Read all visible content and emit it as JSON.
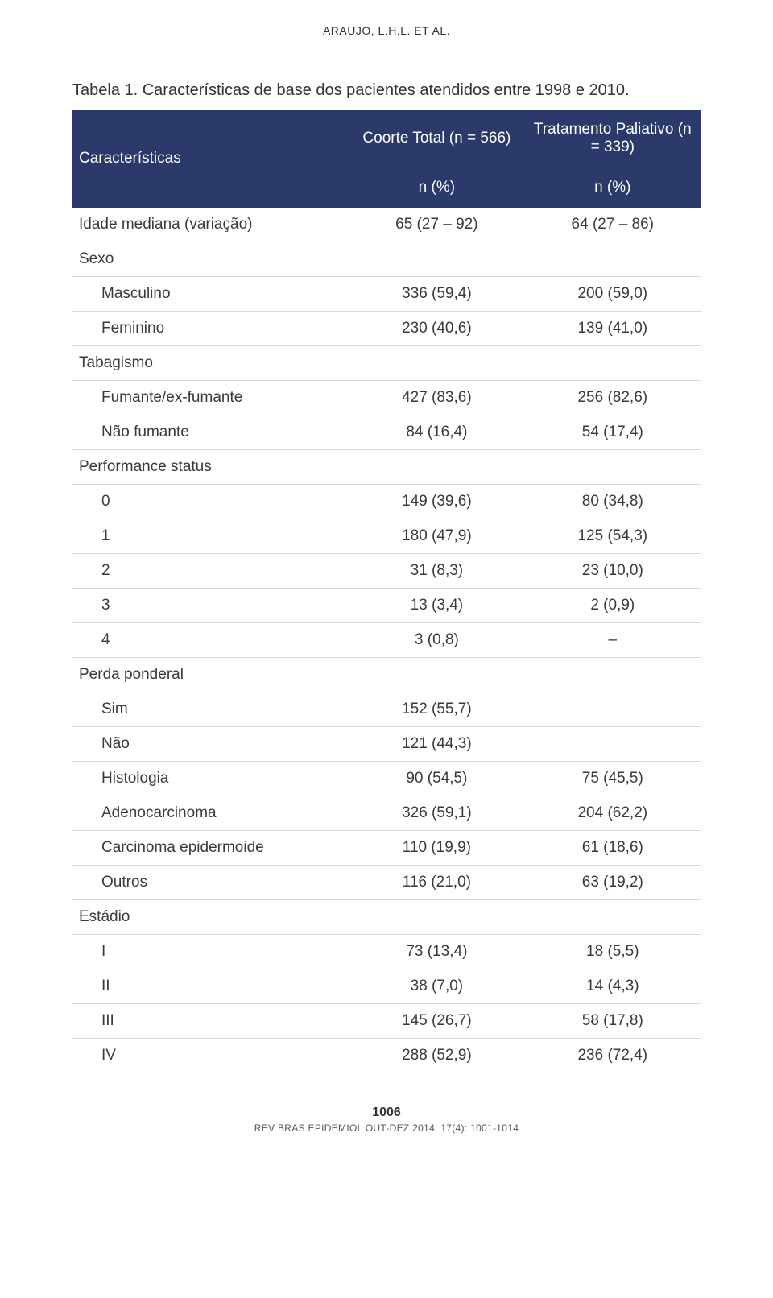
{
  "header_author": "ARAUJO, L.H.L. ET AL.",
  "caption": "Tabela 1. Características de base dos pacientes atendidos entre 1998 e 2010.",
  "columns": {
    "c0": "Características",
    "c1_top": "Coorte Total (n = 566)",
    "c2_top": "Tratamento Paliativo (n = 339)",
    "c1_sub": "n (%)",
    "c2_sub": "n (%)"
  },
  "rows": [
    {
      "label": "Idade mediana (variação)",
      "indent": false,
      "v1": "65 (27 – 92)",
      "v2": "64 (27 – 86)"
    },
    {
      "label": "Sexo",
      "indent": false,
      "v1": "",
      "v2": ""
    },
    {
      "label": "Masculino",
      "indent": true,
      "v1": "336 (59,4)",
      "v2": "200 (59,0)"
    },
    {
      "label": "Feminino",
      "indent": true,
      "v1": "230 (40,6)",
      "v2": "139 (41,0)"
    },
    {
      "label": "Tabagismo",
      "indent": false,
      "v1": "",
      "v2": ""
    },
    {
      "label": "Fumante/ex-fumante",
      "indent": true,
      "v1": "427 (83,6)",
      "v2": "256 (82,6)"
    },
    {
      "label": "Não fumante",
      "indent": true,
      "v1": "84 (16,4)",
      "v2": "54 (17,4)"
    },
    {
      "label": "Performance status",
      "indent": false,
      "v1": "",
      "v2": ""
    },
    {
      "label": "0",
      "indent": true,
      "v1": "149 (39,6)",
      "v2": "80 (34,8)"
    },
    {
      "label": "1",
      "indent": true,
      "v1": "180 (47,9)",
      "v2": "125 (54,3)"
    },
    {
      "label": "2",
      "indent": true,
      "v1": "31 (8,3)",
      "v2": "23 (10,0)"
    },
    {
      "label": "3",
      "indent": true,
      "v1": "13 (3,4)",
      "v2": "2 (0,9)"
    },
    {
      "label": "4",
      "indent": true,
      "v1": "3 (0,8)",
      "v2": "–"
    },
    {
      "label": "Perda ponderal",
      "indent": false,
      "v1": "",
      "v2": ""
    },
    {
      "label": "Sim",
      "indent": true,
      "v1": "152 (55,7)",
      "v2": ""
    },
    {
      "label": "Não",
      "indent": true,
      "v1": "121 (44,3)",
      "v2": ""
    },
    {
      "label": "Histologia",
      "indent": true,
      "v1": "90 (54,5)",
      "v2": "75 (45,5)"
    },
    {
      "label": "Adenocarcinoma",
      "indent": true,
      "v1": "326 (59,1)",
      "v2": "204 (62,2)"
    },
    {
      "label": "Carcinoma epidermoide",
      "indent": true,
      "v1": "110 (19,9)",
      "v2": "61 (18,6)"
    },
    {
      "label": "Outros",
      "indent": true,
      "v1": "116 (21,0)",
      "v2": "63 (19,2)"
    },
    {
      "label": "Estádio",
      "indent": false,
      "v1": "",
      "v2": ""
    },
    {
      "label": "I",
      "indent": true,
      "v1": "73 (13,4)",
      "v2": "18 (5,5)"
    },
    {
      "label": "II",
      "indent": true,
      "v1": "38 (7,0)",
      "v2": "14 (4,3)"
    },
    {
      "label": "III",
      "indent": true,
      "v1": "145 (26,7)",
      "v2": "58 (17,8)"
    },
    {
      "label": "IV",
      "indent": true,
      "v1": "288 (52,9)",
      "v2": "236 (72,4)"
    }
  ],
  "footer": {
    "page": "1006",
    "journal": "REV BRAS EPIDEMIOL OUT-DEZ 2014; 17(4): 1001-1014"
  },
  "style": {
    "header_bg": "#2b3a6b",
    "header_fg": "#ffffff",
    "row_border": "#d9d9d9",
    "text_color": "#3a3a3a",
    "font_size_body": 19,
    "font_size_caption": 20,
    "font_size_header": 14,
    "col_widths": [
      "44%",
      "28%",
      "28%"
    ]
  }
}
